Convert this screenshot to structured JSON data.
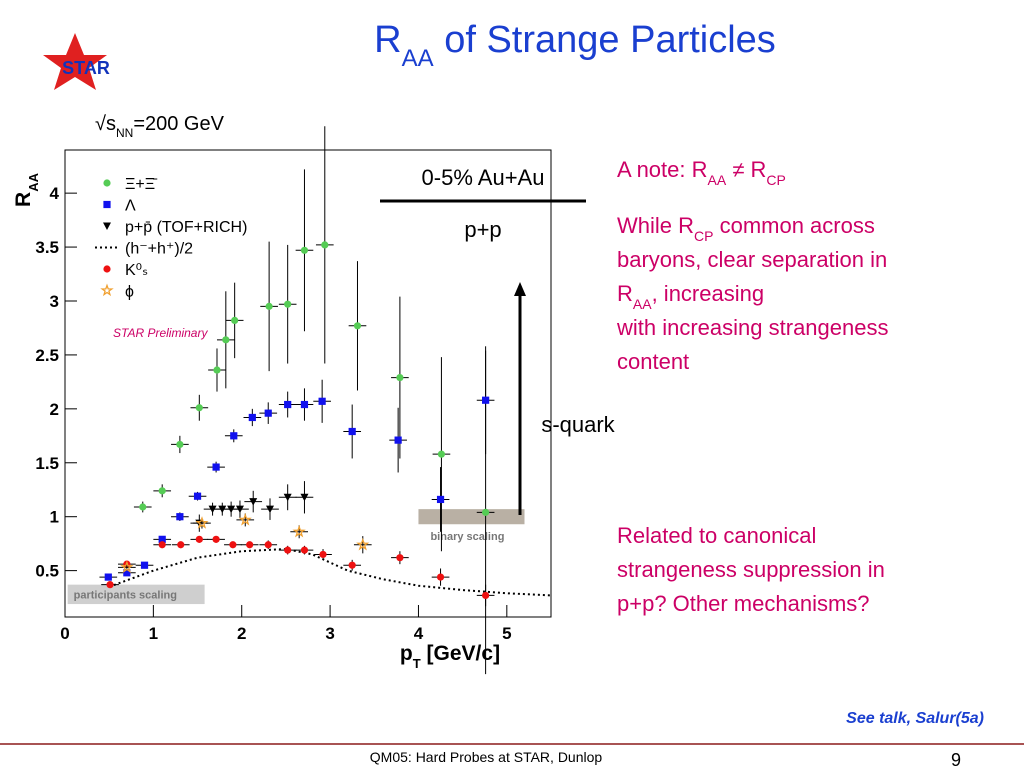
{
  "logo": "STAR",
  "title": [
    {
      "text": "R"
    },
    {
      "text": "AA",
      "sub": true
    },
    {
      "text": " of Strange Particles"
    }
  ],
  "energy": [
    {
      "text": "√s"
    },
    {
      "text": "NN",
      "sub": true
    },
    {
      "text": "=200 GeV"
    }
  ],
  "notes": [
    [
      [
        {
          "text": "A note: R"
        },
        {
          "text": "AA",
          "sub": true
        },
        {
          "text": " ≠ R"
        },
        {
          "text": "CP",
          "sub": true
        }
      ]
    ],
    [
      [
        {
          "text": "While R"
        },
        {
          "text": "CP",
          "sub": true
        },
        {
          "text": " common across"
        }
      ],
      [
        {
          "text": "baryons, clear separation in"
        }
      ],
      [
        {
          "text": "R"
        },
        {
          "text": "AA",
          "sub": true
        },
        {
          "text": ", increasing"
        }
      ],
      [
        {
          "text": "with increasing strangeness"
        }
      ],
      [
        {
          "text": "content"
        }
      ]
    ],
    [
      [
        {
          "text": "Related to canonical"
        }
      ],
      [
        {
          "text": "strangeness suppression in"
        }
      ],
      [
        {
          "text": "p+p?  Other mechanisms?"
        }
      ]
    ]
  ],
  "footer": {
    "reference": "See talk, Salur(5a)",
    "caption": "QM05: Hard Probes at STAR, Dunlop",
    "page": "9"
  },
  "chart_data": {
    "type": "scatter",
    "x_label": [
      {
        "text": "p"
      },
      {
        "text": "T",
        "sub": true
      },
      {
        "text": " [GeV/c]"
      }
    ],
    "y_label": [
      {
        "text": "R"
      },
      {
        "text": "AA",
        "sub": true
      }
    ],
    "xlim": [
      0,
      5.5
    ],
    "ylim": [
      0.07,
      4.4
    ],
    "xticks": [
      0,
      1,
      2,
      3,
      4,
      5
    ],
    "yticks": [
      0.5,
      1,
      1.5,
      2,
      2.5,
      3,
      3.5,
      4
    ],
    "legend": "upper left",
    "xerr": 0.1,
    "annotations": [
      "STAR Preliminary",
      "0-5% Au+Au",
      "p+p",
      "s-quark"
    ],
    "bands": [
      {
        "label": "binary scaling",
        "color": "#b9b0a4",
        "x": [
          4.0,
          5.2
        ],
        "y": [
          0.93,
          1.07
        ]
      },
      {
        "label": "participants scaling",
        "color": "#cfcfcf",
        "x": [
          0.03,
          1.58
        ],
        "y": [
          0.19,
          0.37
        ]
      }
    ],
    "series": [
      {
        "name": "Ξ+Ξ̄",
        "color": "#55cc55",
        "marker": "circle",
        "x": [
          0.88,
          1.1,
          1.3,
          1.52,
          1.72,
          1.82,
          1.92,
          2.31,
          2.52,
          2.71,
          2.94,
          3.31,
          3.79,
          4.26,
          4.76
        ],
        "values": [
          1.09,
          1.24,
          1.67,
          2.01,
          2.36,
          2.64,
          2.82,
          2.95,
          2.97,
          3.47,
          3.52,
          2.77,
          2.29,
          1.58,
          1.04
        ],
        "yerr": [
          0.05,
          0.06,
          0.08,
          0.12,
          0.2,
          0.45,
          0.35,
          0.6,
          0.55,
          0.75,
          1.1,
          0.6,
          0.75,
          0.9,
          1.5
        ]
      },
      {
        "name": "Λ",
        "color": "#1111ee",
        "marker": "square",
        "x": [
          0.49,
          0.7,
          0.9,
          1.1,
          1.3,
          1.5,
          1.71,
          1.91,
          2.12,
          2.3,
          2.52,
          2.71,
          2.91,
          3.25,
          3.77,
          4.25,
          4.76
        ],
        "values": [
          0.44,
          0.48,
          0.55,
          0.79,
          1.0,
          1.19,
          1.46,
          1.75,
          1.92,
          1.96,
          2.04,
          2.04,
          2.07,
          1.79,
          1.71,
          1.16,
          2.08
        ],
        "yerr": [
          0.02,
          0.02,
          0.03,
          0.03,
          0.04,
          0.04,
          0.05,
          0.06,
          0.08,
          0.1,
          0.12,
          0.15,
          0.2,
          0.25,
          0.3,
          0.3,
          0.5
        ]
      },
      {
        "name": "p+p̄  (TOF+RICH)",
        "color": "#000000",
        "marker": "triangle",
        "x": [
          1.52,
          1.67,
          1.78,
          1.88,
          1.98,
          2.13,
          2.32,
          2.52,
          2.71
        ],
        "values": [
          0.94,
          1.07,
          1.07,
          1.07,
          1.07,
          1.14,
          1.07,
          1.18,
          1.18
        ],
        "yerr": [
          0.08,
          0.06,
          0.06,
          0.07,
          0.08,
          0.1,
          0.1,
          0.12,
          0.15
        ]
      },
      {
        "name": "(h⁻+h⁺)/2",
        "color": "#000000",
        "marker": "dotted-line",
        "x": [
          0.5,
          1.0,
          1.5,
          2.0,
          2.5,
          2.8,
          3.2,
          3.6,
          4.0,
          4.5,
          5.0,
          5.5
        ],
        "values": [
          0.35,
          0.5,
          0.62,
          0.68,
          0.7,
          0.65,
          0.5,
          0.42,
          0.36,
          0.32,
          0.29,
          0.27
        ]
      },
      {
        "name": "K⁰ₛ",
        "color": "#ee1111",
        "marker": "circle",
        "x": [
          0.51,
          0.7,
          1.1,
          1.31,
          1.52,
          1.71,
          1.9,
          2.09,
          2.3,
          2.52,
          2.71,
          2.92,
          3.25,
          3.79,
          4.25,
          4.76
        ],
        "values": [
          0.37,
          0.56,
          0.74,
          0.74,
          0.79,
          0.79,
          0.74,
          0.74,
          0.74,
          0.69,
          0.69,
          0.65,
          0.55,
          0.62,
          0.44,
          0.27
        ],
        "yerr": [
          0.02,
          0.02,
          0.03,
          0.03,
          0.03,
          0.03,
          0.03,
          0.03,
          0.04,
          0.04,
          0.04,
          0.05,
          0.05,
          0.06,
          0.08,
          0.1
        ]
      },
      {
        "name": "ϕ",
        "color": "#f0a030",
        "marker": "star",
        "x": [
          0.7,
          1.55,
          2.04,
          2.65,
          3.37
        ],
        "values": [
          0.53,
          0.94,
          0.97,
          0.86,
          0.74
        ],
        "yerr": [
          0.03,
          0.05,
          0.06,
          0.06,
          0.08
        ]
      }
    ]
  }
}
